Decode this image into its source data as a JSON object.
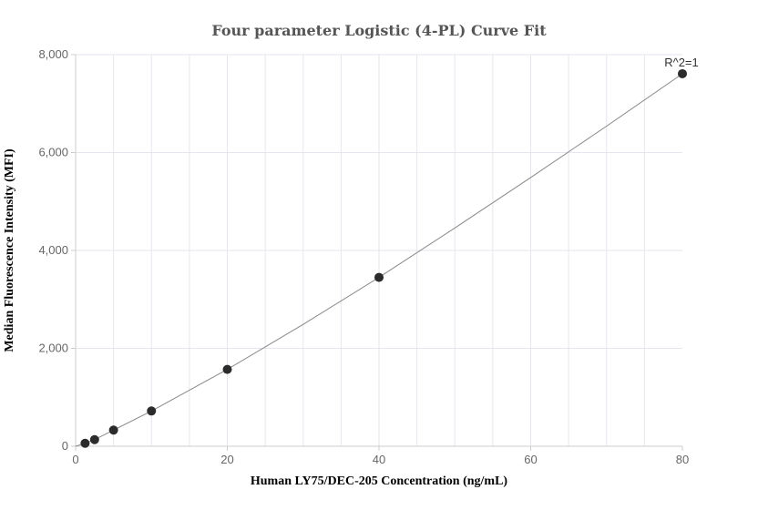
{
  "chart_data": {
    "type": "scatter",
    "title": "Four parameter Logistic (4-PL) Curve Fit",
    "xlabel": "Human LY75/DEC-205 Concentration (ng/mL)",
    "ylabel": "Median Fluorescence Intensity (MFI)",
    "xlim": [
      0,
      80
    ],
    "ylim": [
      0,
      8000
    ],
    "x_ticks": [
      0,
      20,
      40,
      60,
      80
    ],
    "y_ticks": [
      0,
      2000,
      4000,
      6000,
      8000
    ],
    "x_tick_labels": [
      "0",
      "20",
      "40",
      "60",
      "80"
    ],
    "y_tick_labels": [
      "0",
      "2,000",
      "4,000",
      "6,000",
      "8,000"
    ],
    "grid": true,
    "series": [
      {
        "points": [
          {
            "x": 1.25,
            "y": 60
          },
          {
            "x": 2.5,
            "y": 135
          },
          {
            "x": 5,
            "y": 330
          },
          {
            "x": 10,
            "y": 720
          },
          {
            "x": 20,
            "y": 1570
          },
          {
            "x": 40,
            "y": 3450
          },
          {
            "x": 80,
            "y": 7610
          }
        ]
      }
    ],
    "fit_curve": [
      {
        "x": 0,
        "y": 0
      },
      {
        "x": 1.25,
        "y": 60
      },
      {
        "x": 2.5,
        "y": 135
      },
      {
        "x": 5,
        "y": 330
      },
      {
        "x": 10,
        "y": 720
      },
      {
        "x": 20,
        "y": 1570
      },
      {
        "x": 30,
        "y": 2490
      },
      {
        "x": 40,
        "y": 3450
      },
      {
        "x": 50,
        "y": 4460
      },
      {
        "x": 60,
        "y": 5490
      },
      {
        "x": 70,
        "y": 6540
      },
      {
        "x": 80,
        "y": 7610
      }
    ],
    "annotation": "R^2=1",
    "colors": {
      "point": "#2b2b2b",
      "curve": "#888888",
      "grid": "#e6e6ee",
      "axis": "#cccccc"
    }
  }
}
